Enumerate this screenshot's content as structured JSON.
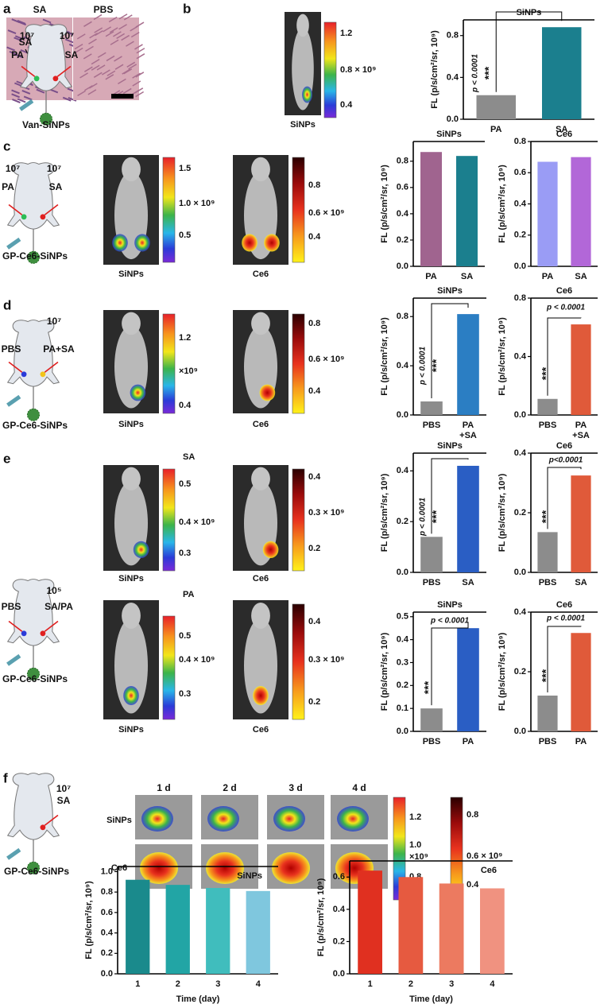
{
  "chart_data": [
    {
      "type": "bar",
      "title": "SiNPs",
      "categories": [
        "PA",
        "SA"
      ],
      "values": [
        0.23,
        0.88
      ],
      "colors": [
        "#8c8c8c",
        "#1b7f8e"
      ],
      "ylabel": "FL (p/s/cm²/sr, 10⁹)",
      "ylim": [
        0,
        0.95
      ],
      "yticks": [
        {
          "value": 0,
          "label": "0.0"
        },
        0.4,
        0.8
      ],
      "annotations": [
        "p < 0.0001",
        "***"
      ]
    },
    {
      "type": "bar",
      "title": "SiNPs",
      "categories": [
        "PA",
        "SA"
      ],
      "values": [
        0.87,
        0.84
      ],
      "colors": [
        "#a0648f",
        "#1b7f8e"
      ],
      "ylabel": "FL (p/s/cm²/sr, 10⁹)",
      "ylim": [
        0,
        0.95
      ],
      "yticks": [
        {
          "value": 0,
          "label": "0.0"
        },
        0.2,
        0.4,
        0.6,
        0.8
      ]
    },
    {
      "type": "bar",
      "title": "Ce6",
      "categories": [
        "PA",
        "SA"
      ],
      "values": [
        0.67,
        0.7
      ],
      "colors": [
        "#9a9cf5",
        "#b267d8"
      ],
      "ylabel": "FL (p/s/cm²/sr, 10⁹)",
      "ylim": [
        0,
        0.8
      ],
      "yticks": [
        {
          "value": 0,
          "label": "0.0"
        },
        0.2,
        0.4,
        0.6,
        0.8
      ]
    },
    {
      "type": "bar",
      "title": "SiNPs",
      "categories": [
        "PBS",
        "PA\n+SA"
      ],
      "values": [
        0.11,
        0.82
      ],
      "colors": [
        "#8c8c8c",
        "#2b7ec3"
      ],
      "ylabel": "FL (p/s/cm²/sr, 10⁹)",
      "ylim": [
        0,
        0.95
      ],
      "yticks": [
        {
          "value": 0,
          "label": "0.0"
        },
        0.4,
        0.8
      ],
      "annotations": [
        "p < 0.0001",
        "***"
      ]
    },
    {
      "type": "bar",
      "title": "Ce6",
      "categories": [
        "PBS",
        "PA\n+SA"
      ],
      "values": [
        0.11,
        0.62
      ],
      "colors": [
        "#8c8c8c",
        "#e05a3a"
      ],
      "ylabel": "FL (p/s/cm²/sr, 10⁹)",
      "ylim": [
        0,
        0.8
      ],
      "yticks": [
        {
          "value": 0,
          "label": "0.0"
        },
        0.4,
        0.8
      ],
      "annotations": [
        "p < 0.0001",
        "***"
      ]
    },
    {
      "type": "bar",
      "title": "SiNPs",
      "categories": [
        "PBS",
        "SA"
      ],
      "values": [
        0.14,
        0.42
      ],
      "colors": [
        "#8c8c8c",
        "#2a5ec4"
      ],
      "ylabel": "FL (p/s/cm²/sr, 10⁹)",
      "ylim": [
        0,
        0.47
      ],
      "yticks": [
        {
          "value": 0,
          "label": "0.0"
        },
        0.2,
        0.4
      ],
      "annotations": [
        "p < 0.0001",
        "***"
      ]
    },
    {
      "type": "bar",
      "title": "Ce6",
      "categories": [
        "PBS",
        "SA"
      ],
      "values": [
        0.135,
        0.325
      ],
      "colors": [
        "#8c8c8c",
        "#e05a3a"
      ],
      "ylabel": "FL (p/s/cm²/sr, 10⁹)",
      "ylim": [
        0,
        0.4
      ],
      "yticks": [
        {
          "value": 0,
          "label": "0.0"
        },
        0.2,
        0.4
      ],
      "annotations": [
        "p<0.0001",
        "***"
      ]
    },
    {
      "type": "bar",
      "title": "SiNPs",
      "categories": [
        "PBS",
        "PA"
      ],
      "values": [
        0.1,
        0.45
      ],
      "colors": [
        "#8c8c8c",
        "#2a5ec4"
      ],
      "ylabel": "FL (p/s/cm²/sr, 10⁹)",
      "ylim": [
        0,
        0.52
      ],
      "yticks": [
        {
          "value": 0,
          "label": "0.0"
        },
        0.1,
        0.2,
        0.3,
        0.4,
        0.5
      ],
      "annotations": [
        "p < 0.0001",
        "***"
      ]
    },
    {
      "type": "bar",
      "title": "Ce6",
      "categories": [
        "PBS",
        "PA"
      ],
      "values": [
        0.12,
        0.33
      ],
      "colors": [
        "#8c8c8c",
        "#e05a3a"
      ],
      "ylabel": "FL (p/s/cm²/sr, 10⁹)",
      "ylim": [
        0,
        0.4
      ],
      "yticks": [
        {
          "value": 0,
          "label": "0.0"
        },
        0.2,
        0.4
      ],
      "annotations": [
        "p < 0.0001",
        "***"
      ]
    },
    {
      "type": "bar",
      "title": "SiNPs",
      "categories": [
        "1",
        "2",
        "3",
        "4"
      ],
      "values": [
        0.92,
        0.87,
        0.84,
        0.81
      ],
      "colors": [
        "#1a8a8c",
        "#22a5a5",
        "#40bdbd",
        "#7fc7de"
      ],
      "ylabel": "FL (p/s/cm²/sr, 10⁹)",
      "xlabel": "Time (day)",
      "ylim": [
        0,
        1.05
      ],
      "yticks": [
        {
          "value": 0,
          "label": "0.0"
        },
        0.2,
        0.4,
        0.6,
        0.8,
        {
          "value": 1,
          "label": "1.0"
        }
      ]
    },
    {
      "type": "bar",
      "title": "Ce6",
      "categories": [
        "1",
        "2",
        "3",
        "4"
      ],
      "values": [
        0.64,
        0.6,
        0.56,
        0.53
      ],
      "colors": [
        "#e03020",
        "#e65a40",
        "#ec7a60",
        "#f09280"
      ],
      "ylabel": "FL (p/s/cm²/sr, 10⁹)",
      "xlabel": "Time (day)",
      "ylim": [
        0,
        0.7
      ],
      "yticks": [
        {
          "value": 0,
          "label": "0.0"
        },
        0.2,
        0.4,
        0.6
      ]
    }
  ],
  "figure": {
    "panels": [
      "a",
      "b",
      "c",
      "d",
      "e",
      "f"
    ],
    "histology": [
      "SA",
      "PBS",
      "SA"
    ],
    "scheme_b": [
      "10⁷",
      "10⁷",
      "PA",
      "SA",
      "Van-SiNPs"
    ],
    "scheme_c": [
      "10⁷",
      "10⁷",
      "PA",
      "SA",
      "GP-Ce6-SiNPs"
    ],
    "scheme_d": [
      "10⁷",
      "PBS",
      "PA+SA",
      "GP-Ce6-SiNPs"
    ],
    "scheme_e": [
      "10⁵",
      "PBS",
      "SA/PA",
      "GP-Ce6-SiNPs"
    ],
    "scheme_f": [
      "10⁷",
      "SA",
      "GP-Ce6-SiNPs"
    ],
    "captions": [
      "SiNPs",
      "SiNPs",
      "Ce6",
      "SiNPs",
      "Ce6",
      "SiNPs",
      "Ce6",
      "SiNPs",
      "Ce6"
    ],
    "colorbars": [
      {
        "ticks": [
          "1.2",
          "0.8 × 10⁹",
          "0.4"
        ]
      },
      {
        "ticks": [
          "1.5",
          "1.0 × 10⁹",
          "0.5"
        ]
      },
      {
        "ticks": [
          "0.8",
          "0.6 × 10⁹",
          "0.4"
        ]
      },
      {
        "ticks": [
          "1.2",
          "×10⁹",
          "0.4"
        ]
      },
      {
        "ticks": [
          "0.8",
          "0.6 × 10⁹",
          "0.4"
        ]
      },
      {
        "title": "SA",
        "ticks": [
          "0.5",
          "0.4 × 10⁹",
          "0.3"
        ]
      },
      {
        "ticks": [
          "0.4",
          "0.3 × 10⁹",
          "0.2"
        ]
      },
      {
        "title": "PA",
        "ticks": [
          "0.5",
          "0.4 × 10⁹",
          "0.3"
        ]
      },
      {
        "ticks": [
          "0.4",
          "0.3 × 10⁹",
          "0.2"
        ]
      },
      {
        "ticks": [
          "1.2",
          "1.0",
          "×10⁹",
          "0.8",
          "0.6"
        ]
      },
      {
        "ticks": [
          "0.8",
          "0.6 × 10⁹",
          "0.4"
        ]
      }
    ],
    "timeline": {
      "days": [
        "1 d",
        "2 d",
        "3 d",
        "4 d"
      ],
      "rows": [
        "SiNPs",
        "Ce6"
      ]
    }
  }
}
